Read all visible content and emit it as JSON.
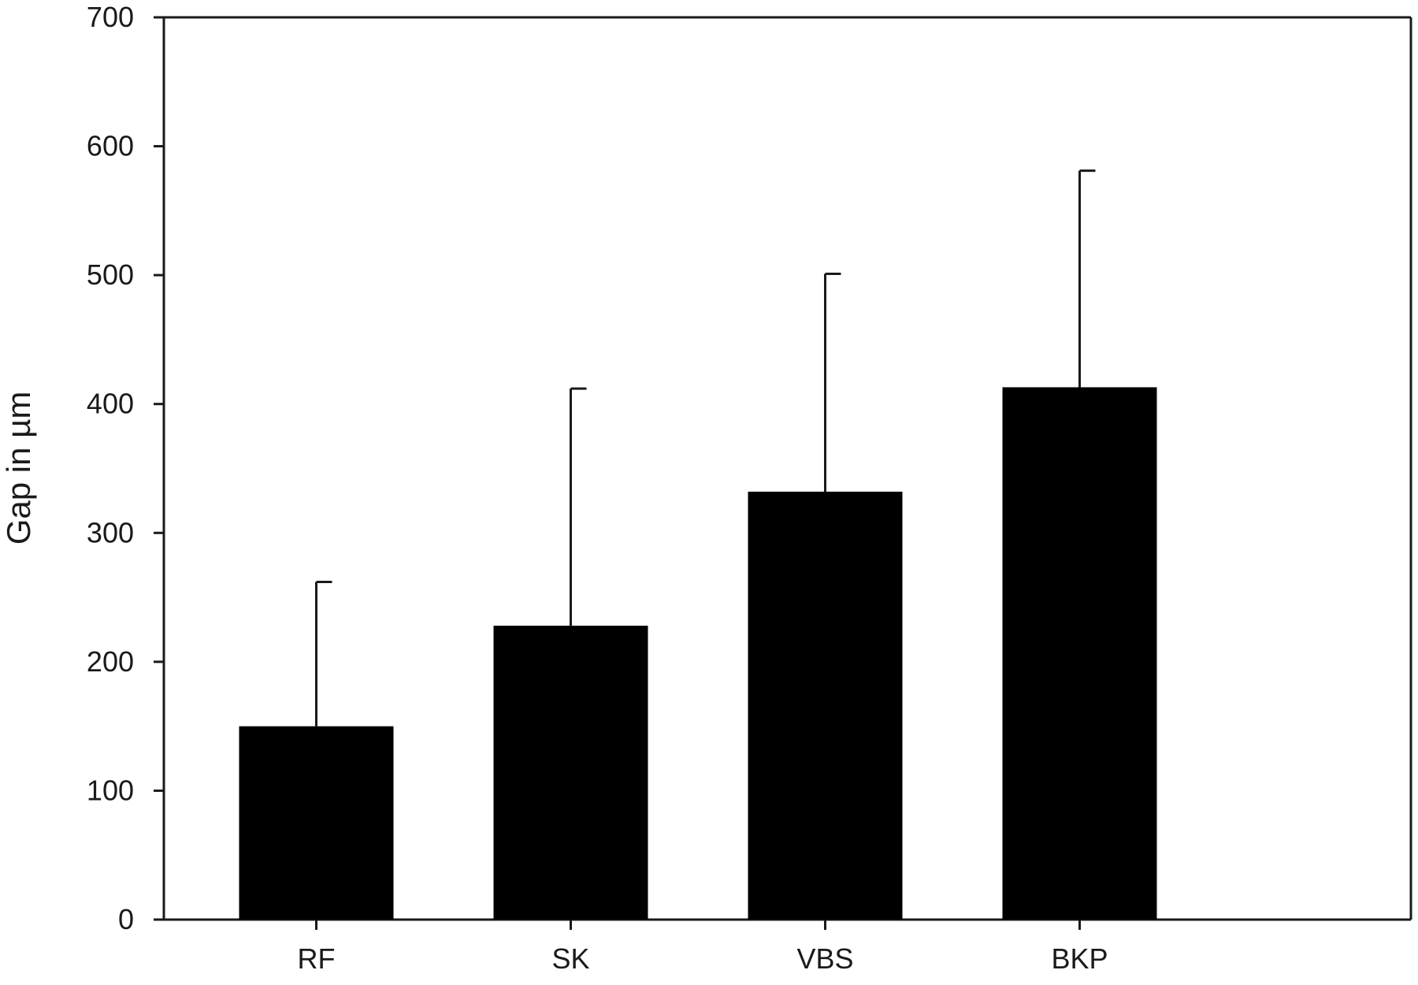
{
  "chart_data": {
    "type": "bar",
    "title": "",
    "xlabel": "",
    "ylabel": "Gap in µm",
    "categories": [
      "RF",
      "SK",
      "VBS",
      "BKP"
    ],
    "series": [
      {
        "values": [
          150,
          228,
          332,
          413
        ],
        "error_upper": [
          262,
          412,
          501,
          581
        ]
      }
    ],
    "ylim": [
      0,
      700
    ],
    "yticks": [
      0,
      100,
      200,
      300,
      400,
      500,
      600,
      700
    ],
    "grid": false,
    "bar_color": "#000000",
    "axis_color": "#1a1a1a"
  }
}
